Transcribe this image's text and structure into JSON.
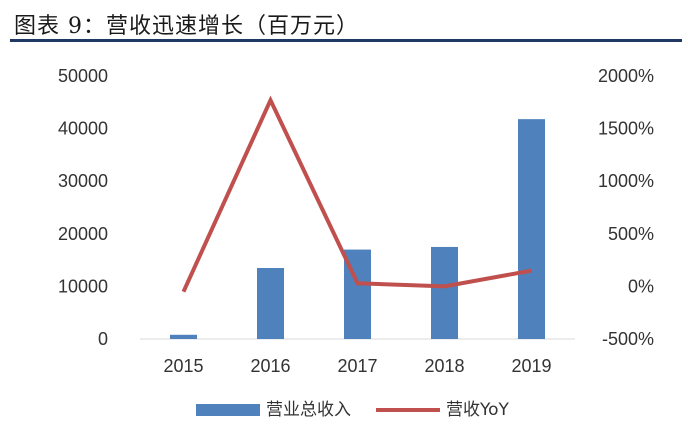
{
  "header": {
    "title": "图表 9：营收迅速增长（百万元）"
  },
  "chart_data": {
    "type": "bar",
    "title": "图表 9：营收迅速增长（百万元）",
    "categories": [
      "2015",
      "2016",
      "2017",
      "2018",
      "2019"
    ],
    "left_axis": {
      "ylim": [
        0,
        50000
      ],
      "ticks": [
        "0",
        "10000",
        "20000",
        "30000",
        "40000",
        "50000"
      ]
    },
    "right_axis": {
      "ylim": [
        -500,
        2000
      ],
      "ticks": [
        "-500%",
        "0%",
        "500%",
        "1000%",
        "1500%",
        "2000%"
      ]
    },
    "series": [
      {
        "name": "营业总收入",
        "type": "bar",
        "axis": "left",
        "values": [
          800,
          13500,
          17000,
          17500,
          41800
        ],
        "color": "#4f81bd"
      },
      {
        "name": "营收YoY",
        "type": "line",
        "axis": "right",
        "values": [
          -50,
          1770,
          30,
          0,
          150
        ],
        "color": "#c0504d"
      }
    ],
    "legend_position": "bottom",
    "grid": false
  }
}
